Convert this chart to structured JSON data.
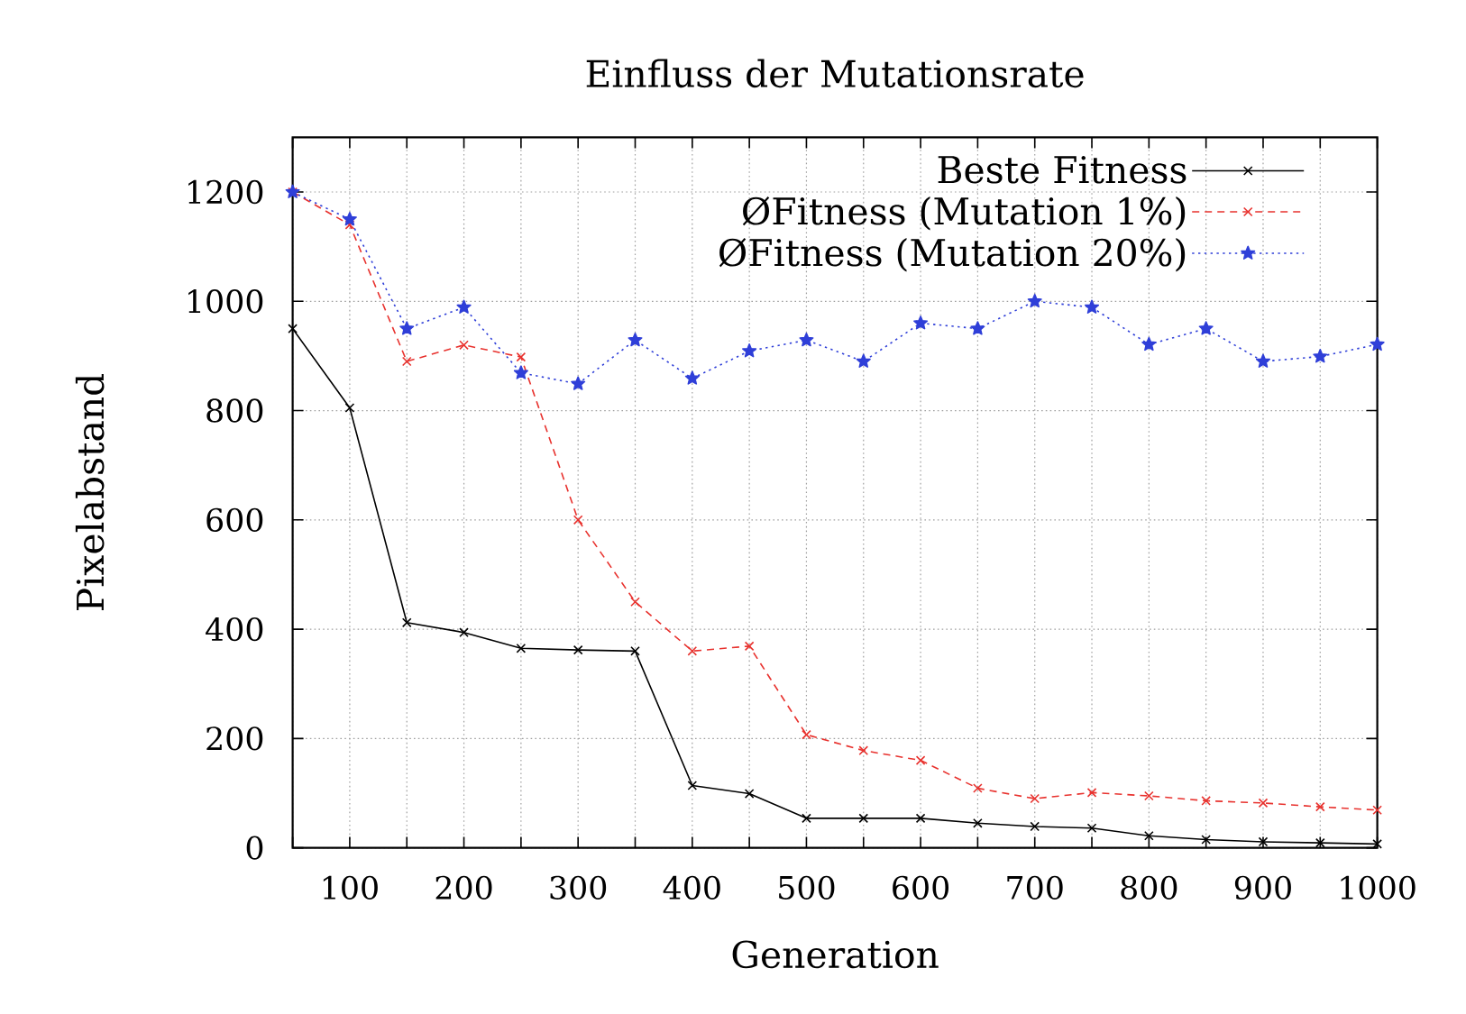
{
  "chart_data": {
    "type": "line",
    "title": "Einfluss der Mutationsrate",
    "xlabel": "Generation",
    "ylabel": "Pixelabstand",
    "x": [
      50,
      100,
      150,
      200,
      250,
      300,
      350,
      400,
      450,
      500,
      550,
      600,
      650,
      700,
      750,
      800,
      850,
      900,
      950,
      1000
    ],
    "series": [
      {
        "name": "Beste Fitness",
        "color": "#000000",
        "marker": "cross",
        "line_style": "solid",
        "values": [
          950,
          805,
          412,
          394,
          365,
          362,
          360,
          114,
          99,
          54,
          54,
          54,
          45,
          39,
          36,
          22,
          15,
          11,
          9,
          7
        ]
      },
      {
        "name": "ØFitness (Mutation 1%)",
        "color": "#e8322e",
        "marker": "cross",
        "line_style": "dashed",
        "values": [
          1200,
          1140,
          890,
          920,
          898,
          600,
          450,
          360,
          369,
          207,
          178,
          160,
          109,
          90,
          101,
          95,
          86,
          82,
          75,
          69
        ]
      },
      {
        "name": "ØFitness (Mutation 20%)",
        "color": "#2f3fd8",
        "marker": "star",
        "line_style": "dotted",
        "values": [
          1200,
          1150,
          950,
          989,
          869,
          849,
          929,
          859,
          909,
          929,
          890,
          960,
          950,
          1000,
          989,
          921,
          950,
          890,
          899,
          921
        ]
      }
    ],
    "xlim": [
      50,
      1000
    ],
    "ylim": [
      0,
      1300
    ],
    "xticks": [
      {
        "value": 50,
        "label": null
      },
      100,
      {
        "value": 150,
        "label": null
      },
      200,
      {
        "value": 250,
        "label": null
      },
      300,
      {
        "value": 350,
        "label": null
      },
      400,
      {
        "value": 450,
        "label": null
      },
      500,
      {
        "value": 550,
        "label": null
      },
      600,
      {
        "value": 650,
        "label": null
      },
      700,
      {
        "value": 750,
        "label": null
      },
      800,
      {
        "value": 850,
        "label": null
      },
      900,
      {
        "value": 950,
        "label": null
      },
      1000
    ],
    "yticks": [
      0,
      200,
      400,
      600,
      800,
      1000,
      1200
    ],
    "grid": true,
    "legend": "top right"
  }
}
